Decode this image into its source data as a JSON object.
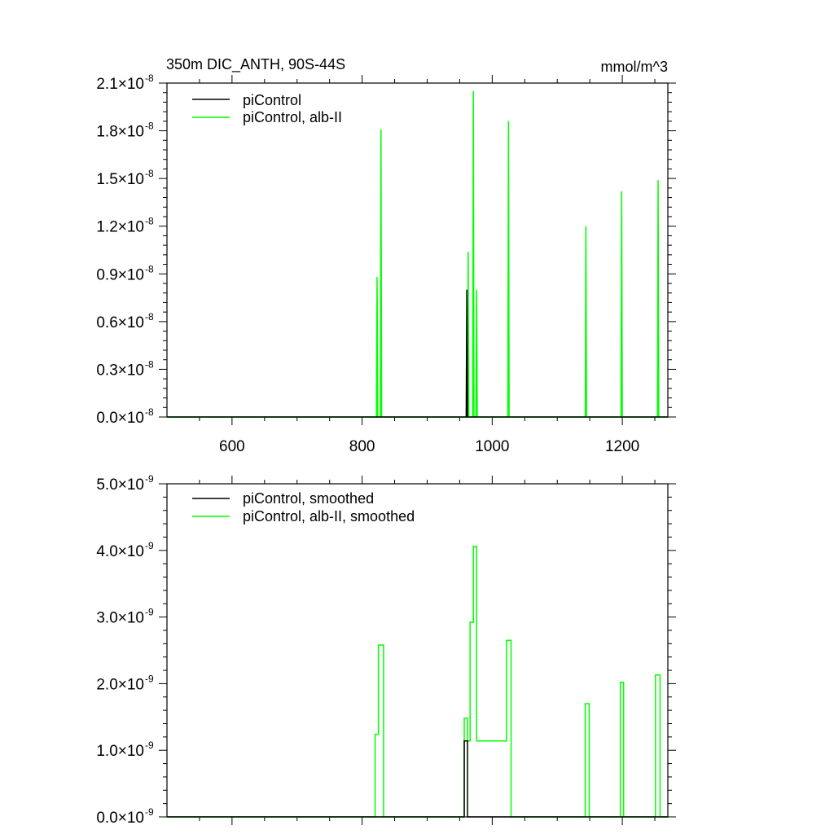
{
  "colors": {
    "piControl": "#000000",
    "alb": "#00ff00",
    "axis": "#000000",
    "background": "#ffffff"
  },
  "chart_data": [
    {
      "type": "line",
      "title": "350m DIC_ANTH, 90S-44S",
      "units": "mmol/m^3",
      "xlim": [
        500,
        1270
      ],
      "ylim": [
        0,
        2.1e-08
      ],
      "xticks": [
        600,
        800,
        1000,
        1200
      ],
      "xtick_labels": [
        "600",
        "800",
        "1000",
        "1200"
      ],
      "yticks": [
        0,
        3e-09,
        6e-09,
        9e-09,
        1.2e-08,
        1.5e-08,
        1.8e-08,
        2.1e-08
      ],
      "ytick_labels": [
        {
          "mantissa": "0.0",
          "exponent": "-8"
        },
        {
          "mantissa": "0.3",
          "exponent": "-8"
        },
        {
          "mantissa": "0.6",
          "exponent": "-8"
        },
        {
          "mantissa": "0.9",
          "exponent": "-8"
        },
        {
          "mantissa": "1.2",
          "exponent": "-8"
        },
        {
          "mantissa": "1.5",
          "exponent": "-8"
        },
        {
          "mantissa": "1.8",
          "exponent": "-8"
        },
        {
          "mantissa": "2.1",
          "exponent": "-8"
        }
      ],
      "legend_position": "top-left",
      "series": [
        {
          "name": "piControl",
          "color_key": "piControl",
          "x": [
            500,
            960,
            961,
            962,
            1270
          ],
          "y": [
            0,
            0,
            8e-09,
            0,
            0
          ]
        },
        {
          "name": "piControl, alb-II",
          "color_key": "alb",
          "x": [
            500,
            822,
            823,
            824,
            828,
            829,
            830,
            960,
            962,
            963,
            964,
            970,
            971,
            972,
            975,
            976,
            977,
            1024,
            1025,
            1026,
            1143,
            1144,
            1145,
            1198,
            1199,
            1200,
            1254,
            1255,
            1256,
            1270
          ],
          "y": [
            0,
            0,
            8.8e-09,
            0,
            0,
            1.81e-08,
            0,
            0,
            0,
            1.04e-08,
            0,
            0,
            2.05e-08,
            0,
            0,
            8e-09,
            0,
            0,
            1.86e-08,
            0,
            0,
            1.2e-08,
            0,
            0,
            1.42e-08,
            0,
            0,
            1.49e-08,
            0,
            0
          ]
        }
      ]
    },
    {
      "type": "line",
      "xlim": [
        500,
        1270
      ],
      "ylim": [
        0,
        5e-09
      ],
      "xticks": [
        600,
        800,
        1000,
        1200
      ],
      "yticks": [
        0,
        1e-09,
        2e-09,
        3e-09,
        4e-09,
        5e-09
      ],
      "ytick_labels": [
        {
          "mantissa": "0.0",
          "exponent": "-9"
        },
        {
          "mantissa": "1.0",
          "exponent": "-9"
        },
        {
          "mantissa": "2.0",
          "exponent": "-9"
        },
        {
          "mantissa": "3.0",
          "exponent": "-9"
        },
        {
          "mantissa": "4.0",
          "exponent": "-9"
        },
        {
          "mantissa": "5.0",
          "exponent": "-9"
        }
      ],
      "legend_position": "top-left",
      "step": true,
      "series": [
        {
          "name": "piControl, smoothed",
          "color_key": "piControl",
          "x": [
            500,
            957,
            962,
            1270
          ],
          "y": [
            0,
            1.14e-09,
            0,
            0
          ]
        },
        {
          "name": "piControl, alb-II, smoothed",
          "color_key": "alb",
          "x": [
            500,
            820,
            825,
            833,
            957,
            962,
            966,
            971,
            972,
            976,
            1022,
            1029,
            1143,
            1149,
            1197,
            1202,
            1251,
            1258
          ],
          "y": [
            0,
            1.24e-09,
            2.58e-09,
            0,
            1.48e-09,
            1.14e-09,
            2.92e-09,
            4.06e-09,
            4.06e-09,
            1.14e-09,
            2.65e-09,
            0,
            1.7e-09,
            0,
            2.02e-09,
            0,
            2.13e-09,
            0
          ]
        }
      ]
    }
  ]
}
